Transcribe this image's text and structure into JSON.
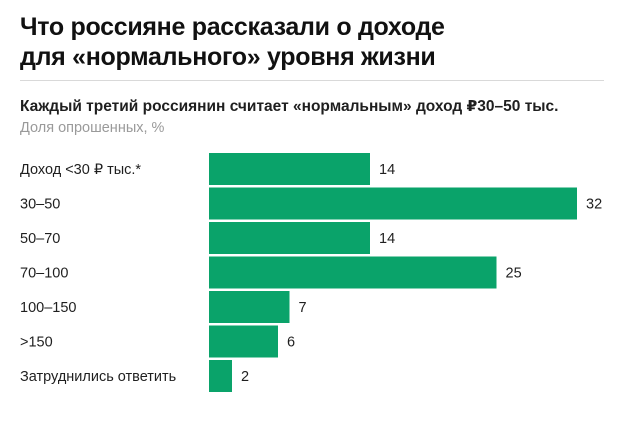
{
  "header": {
    "title_line1": "Что россияне рассказали о доходе",
    "title_line2": "для «нормального» уровня жизни"
  },
  "chart_data": {
    "type": "bar",
    "orientation": "horizontal",
    "subtitle": "Каждый третий россиянин считает «нормальным» доход ₽30–50 тыс.",
    "unit_label": "Доля опрошенных, %",
    "categories": [
      "Доход <30 ₽ тыс.*",
      "30–50",
      "50–70",
      "70–100",
      "100–150",
      ">150",
      "Затруднились ответить"
    ],
    "values": [
      14,
      32,
      14,
      25,
      7,
      6,
      2
    ],
    "xlim": [
      0,
      32
    ],
    "grid": false,
    "bar_color": "#0aa36a"
  }
}
